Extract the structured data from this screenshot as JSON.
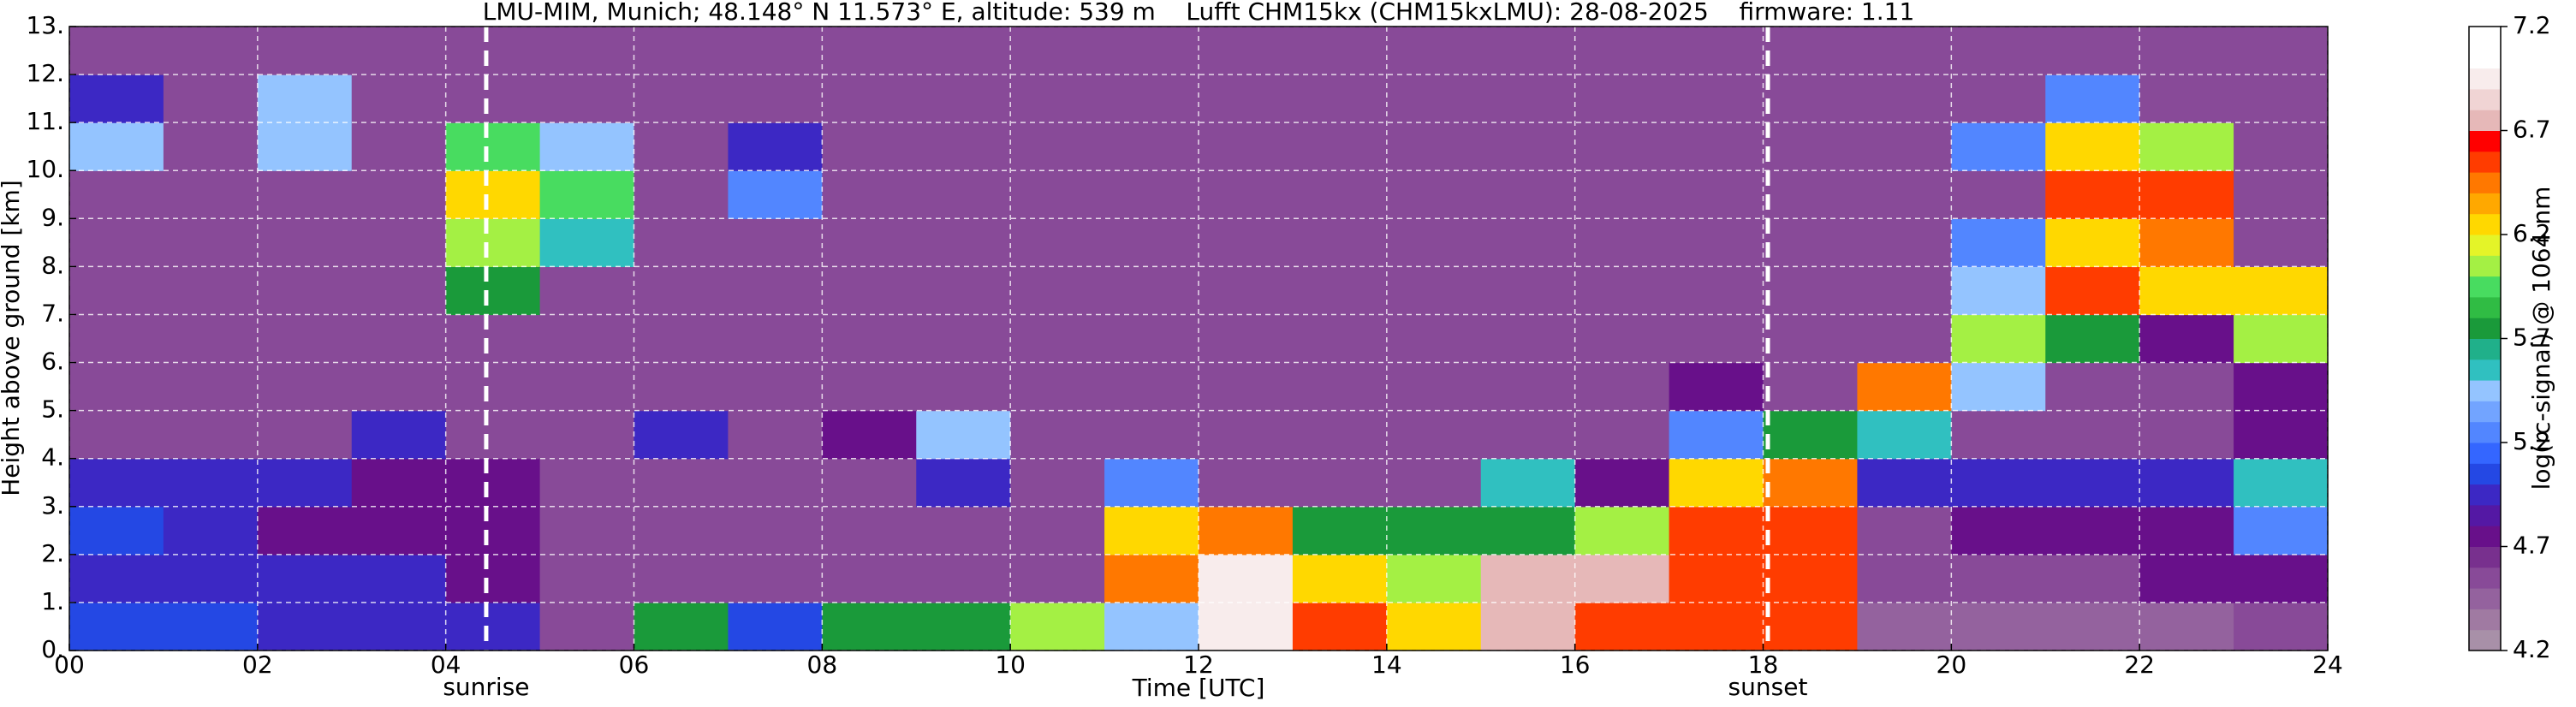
{
  "chart_data": {
    "type": "heatmap",
    "title": "LMU-MIM, Munich; 48.148° N 11.573° E, altitude: 539 m    Lufft CHM15kx (CHM15kxLMU): 28-08-2025    firmware: 1.11",
    "xlabel": "Time [UTC]",
    "ylabel": "Height above ground [km]",
    "xlim": [
      0,
      24
    ],
    "ylim": [
      0,
      13
    ],
    "xticks": [
      {
        "value": 0,
        "label": "00"
      },
      {
        "value": 2,
        "label": "02"
      },
      {
        "value": 4,
        "label": "04"
      },
      {
        "value": 6,
        "label": "06"
      },
      {
        "value": 8,
        "label": "08"
      },
      10,
      12,
      14,
      16,
      18,
      20,
      22,
      24
    ],
    "yticks": [
      {
        "value": 0,
        "label": "0."
      },
      {
        "value": 1,
        "label": "1."
      },
      {
        "value": 2,
        "label": "2."
      },
      {
        "value": 3,
        "label": "3."
      },
      {
        "value": 4,
        "label": "4."
      },
      {
        "value": 5,
        "label": "5."
      },
      {
        "value": 6,
        "label": "6."
      },
      {
        "value": 7,
        "label": "7."
      },
      {
        "value": 8,
        "label": "8."
      },
      {
        "value": 9,
        "label": "9."
      },
      {
        "value": 10,
        "label": "10."
      },
      {
        "value": 11,
        "label": "11."
      },
      {
        "value": 12,
        "label": "12."
      },
      {
        "value": 13,
        "label": "13."
      }
    ],
    "grid": true,
    "z": [
      [
        5.1,
        5.1,
        5.0,
        5.0,
        5.0,
        4.6,
        5.8,
        5.1,
        5.7,
        5.7,
        6.0,
        5.4,
        6.9,
        6.5,
        6.2,
        6.8,
        6.6,
        6.5,
        6.6,
        4.5,
        4.5,
        4.5,
        4.5,
        4.6
      ],
      [
        5.0,
        5.0,
        4.9,
        4.9,
        4.8,
        4.6,
        4.6,
        4.6,
        4.6,
        4.6,
        4.6,
        6.4,
        6.9,
        6.3,
        6.1,
        6.7,
        6.8,
        6.5,
        6.5,
        4.6,
        4.6,
        4.6,
        4.7,
        4.8
      ],
      [
        5.1,
        4.9,
        4.8,
        4.8,
        4.8,
        4.6,
        4.6,
        4.6,
        4.6,
        4.6,
        4.6,
        6.3,
        6.4,
        5.8,
        5.8,
        5.8,
        6.0,
        6.5,
        6.6,
        4.6,
        4.8,
        4.8,
        4.8,
        5.2
      ],
      [
        5.0,
        4.9,
        4.9,
        4.8,
        4.7,
        4.6,
        4.6,
        4.6,
        4.6,
        5.0,
        4.6,
        5.3,
        4.6,
        4.6,
        4.6,
        5.6,
        4.8,
        6.3,
        6.4,
        5.0,
        4.9,
        4.9,
        5.0,
        5.6
      ],
      [
        4.6,
        4.6,
        4.6,
        4.9,
        4.6,
        4.6,
        5.0,
        4.6,
        4.7,
        5.4,
        4.6,
        4.6,
        4.6,
        4.6,
        4.6,
        4.6,
        4.6,
        5.2,
        5.8,
        5.6,
        4.6,
        4.6,
        4.6,
        4.8
      ],
      [
        4.6,
        4.6,
        4.6,
        4.6,
        4.6,
        4.6,
        4.6,
        4.6,
        4.6,
        4.6,
        4.6,
        4.6,
        4.6,
        4.6,
        4.6,
        4.6,
        4.6,
        4.8,
        4.6,
        6.4,
        5.4,
        4.6,
        4.6,
        4.8
      ],
      [
        4.6,
        4.6,
        4.6,
        4.6,
        4.6,
        4.6,
        4.6,
        4.6,
        4.6,
        4.6,
        4.6,
        4.6,
        4.6,
        4.6,
        4.6,
        4.6,
        4.6,
        4.6,
        4.6,
        4.6,
        6.0,
        5.8,
        4.7,
        6.0
      ],
      [
        4.6,
        4.6,
        4.6,
        4.6,
        5.8,
        4.6,
        4.6,
        4.6,
        4.6,
        4.6,
        4.6,
        4.6,
        4.6,
        4.6,
        4.6,
        4.6,
        4.6,
        4.6,
        4.6,
        4.6,
        5.4,
        6.5,
        6.2,
        6.3
      ],
      [
        4.6,
        4.6,
        4.6,
        4.6,
        6.0,
        5.6,
        4.6,
        4.6,
        4.6,
        4.6,
        4.6,
        4.6,
        4.6,
        4.6,
        4.6,
        4.6,
        4.6,
        4.6,
        4.6,
        4.6,
        5.2,
        6.3,
        6.4,
        4.6
      ],
      [
        4.6,
        4.6,
        4.6,
        4.6,
        6.2,
        5.9,
        4.6,
        5.2,
        4.6,
        4.6,
        4.6,
        4.6,
        4.6,
        4.6,
        4.6,
        4.6,
        4.6,
        4.6,
        4.6,
        4.6,
        4.6,
        6.5,
        6.6,
        4.6
      ],
      [
        5.4,
        4.6,
        5.5,
        4.6,
        5.9,
        5.5,
        4.6,
        5.0,
        4.6,
        4.6,
        4.6,
        4.6,
        4.6,
        4.6,
        4.6,
        4.6,
        4.6,
        4.6,
        4.6,
        4.6,
        5.2,
        6.3,
        6.0,
        4.6
      ],
      [
        4.9,
        4.6,
        5.4,
        4.6,
        4.6,
        4.6,
        4.6,
        4.6,
        4.6,
        4.6,
        4.6,
        4.6,
        4.6,
        4.6,
        4.6,
        4.6,
        4.6,
        4.6,
        4.6,
        4.6,
        4.6,
        5.2,
        4.6,
        4.6
      ],
      [
        4.6,
        4.6,
        4.6,
        4.6,
        4.6,
        4.6,
        4.6,
        4.6,
        4.6,
        4.6,
        4.6,
        4.6,
        4.6,
        4.6,
        4.6,
        4.6,
        4.6,
        4.6,
        4.6,
        4.6,
        4.6,
        4.6,
        4.6,
        4.6
      ]
    ],
    "annotations": [
      {
        "label": "sunrise",
        "x": 4.43
      },
      {
        "label": "sunset",
        "x": 18.05
      }
    ],
    "colorbar": {
      "label": "log(rc-signal) @ 1064 nm",
      "lim": [
        4.2,
        7.2
      ],
      "ticks": [
        4.2,
        4.7,
        5.2,
        5.7,
        6.2,
        6.7,
        7.2
      ],
      "colors": [
        "#a890a8",
        "#a07aa2",
        "#94629e",
        "#884a98",
        "#78308e",
        "#68108a",
        "#5418a4",
        "#3c28c4",
        "#2448e4",
        "#3466ff",
        "#5286ff",
        "#72a4ff",
        "#94c4ff",
        "#30c0c0",
        "#20b08a",
        "#1a9a3a",
        "#30bc44",
        "#48dc60",
        "#a4f044",
        "#e4f428",
        "#ffd800",
        "#ffa800",
        "#ff7800",
        "#ff3c00",
        "#ff0000",
        "#e6b8b8",
        "#f0d4d4",
        "#f8ecec",
        "#ffffff",
        "#ffffff"
      ]
    }
  }
}
